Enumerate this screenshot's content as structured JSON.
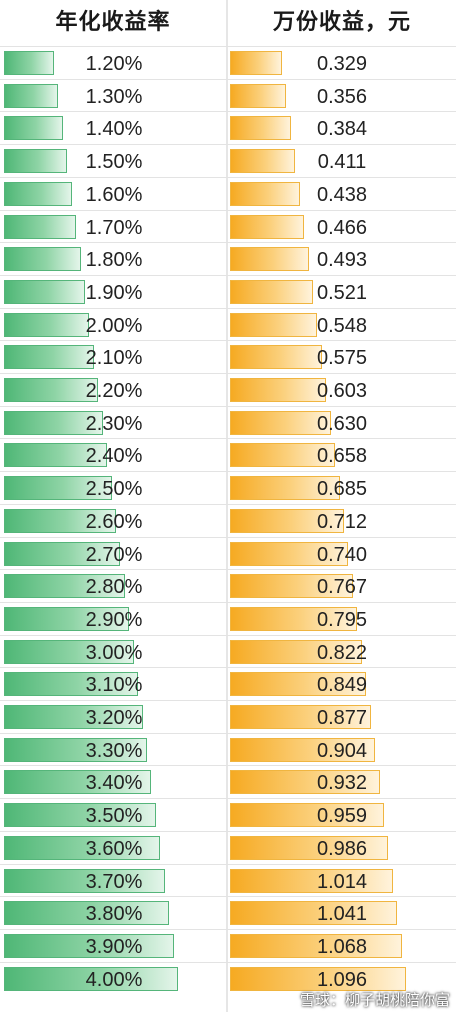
{
  "chart_data": {
    "type": "table",
    "columns": [
      "年化收益率",
      "万份收益，元"
    ],
    "rows": [
      [
        "1.20%",
        0.329
      ],
      [
        "1.30%",
        0.356
      ],
      [
        "1.40%",
        0.384
      ],
      [
        "1.50%",
        0.411
      ],
      [
        "1.60%",
        0.438
      ],
      [
        "1.70%",
        0.466
      ],
      [
        "1.80%",
        0.493
      ],
      [
        "1.90%",
        0.521
      ],
      [
        "2.00%",
        0.548
      ],
      [
        "2.10%",
        0.575
      ],
      [
        "2.20%",
        0.603
      ],
      [
        "2.30%",
        0.63
      ],
      [
        "2.40%",
        0.658
      ],
      [
        "2.50%",
        0.685
      ],
      [
        "2.60%",
        0.712
      ],
      [
        "2.70%",
        0.74
      ],
      [
        "2.80%",
        0.767
      ],
      [
        "2.90%",
        0.795
      ],
      [
        "3.00%",
        0.822
      ],
      [
        "3.10%",
        0.849
      ],
      [
        "3.20%",
        0.877
      ],
      [
        "3.30%",
        0.904
      ],
      [
        "3.40%",
        0.932
      ],
      [
        "3.50%",
        0.959
      ],
      [
        "3.60%",
        0.986
      ],
      [
        "3.70%",
        1.014
      ],
      [
        "3.80%",
        1.041
      ],
      [
        "3.90%",
        1.068
      ],
      [
        "4.00%",
        1.096
      ]
    ],
    "rate_values": [
      1.2,
      1.3,
      1.4,
      1.5,
      1.6,
      1.7,
      1.8,
      1.9,
      2.0,
      2.1,
      2.2,
      2.3,
      2.4,
      2.5,
      2.6,
      2.7,
      2.8,
      2.9,
      3.0,
      3.1,
      3.2,
      3.3,
      3.4,
      3.5,
      3.6,
      3.7,
      3.8,
      3.9,
      4.0
    ],
    "bar_colors": {
      "rate": "#4fb776",
      "earnings": "#f6aa22"
    }
  },
  "watermark": "雪球：柳子胡桃陪你富"
}
